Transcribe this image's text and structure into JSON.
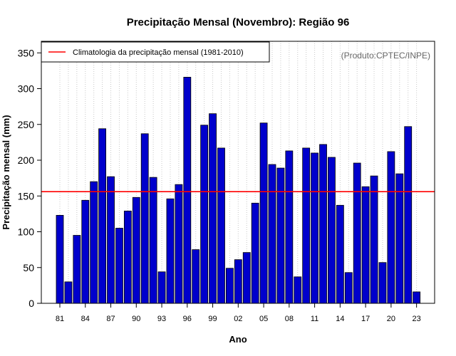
{
  "chart_data": {
    "type": "bar",
    "title": "Precipitação Mensal (Novembro): Região 96",
    "xlabel": "Ano",
    "ylabel": "Precipitação mensal (mm)",
    "ylim": [
      0,
      360
    ],
    "yticks": [
      0,
      50,
      100,
      150,
      200,
      250,
      300,
      350
    ],
    "xtick_labels": [
      "81",
      "84",
      "87",
      "90",
      "93",
      "96",
      "99",
      "02",
      "05",
      "08",
      "11",
      "14",
      "17",
      "20",
      "23"
    ],
    "categories": [
      "1981",
      "1982",
      "1983",
      "1984",
      "1985",
      "1986",
      "1987",
      "1988",
      "1989",
      "1990",
      "1991",
      "1992",
      "1993",
      "1994",
      "1995",
      "1996",
      "1997",
      "1998",
      "1999",
      "2000",
      "2001",
      "2002",
      "2003",
      "2004",
      "2005",
      "2006",
      "2007",
      "2008",
      "2009",
      "2010",
      "2011",
      "2012",
      "2013",
      "2014",
      "2015",
      "2016",
      "2017",
      "2018",
      "2019",
      "2020",
      "2021",
      "2022",
      "2023"
    ],
    "values": [
      123,
      30,
      95,
      144,
      170,
      244,
      177,
      105,
      129,
      148,
      237,
      176,
      44,
      146,
      166,
      316,
      75,
      249,
      265,
      217,
      49,
      61,
      71,
      140,
      252,
      194,
      189,
      213,
      37,
      217,
      210,
      222,
      204,
      137,
      43,
      196,
      163,
      178,
      57,
      212,
      181,
      247,
      16
    ],
    "climatology": {
      "label": "Climatologia da precipitação mensal (1981-2010)",
      "value": 156,
      "color": "#ff0000"
    },
    "bar_color": "#0000cc",
    "credit": "(Produto:CPTEC/INPE)",
    "legend_position": "top-left",
    "grid": "vertical dotted"
  }
}
